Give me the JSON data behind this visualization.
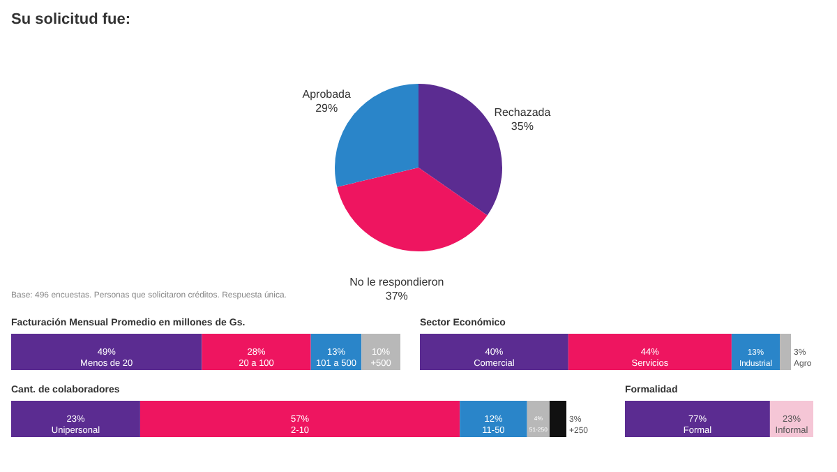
{
  "chart_data": [
    {
      "type": "pie",
      "title": "Su solicitud fue:",
      "categories": [
        "Rechazada",
        "No le respondieron",
        "Aprobada"
      ],
      "values": [
        35,
        37,
        29
      ],
      "value_labels": [
        "35%",
        "37%",
        "29%"
      ],
      "colors": [
        "#5b2c91",
        "#ee1560",
        "#2a85c9"
      ],
      "annotations": [
        "Base: 496 encuestas. Personas que solicitaron créditos. Respuesta única."
      ]
    },
    {
      "type": "bar",
      "orientation": "horizontal",
      "stacked": true,
      "title": "Facturación Mensual Promedio en millones de Gs.",
      "categories": [
        null
      ],
      "series": [
        {
          "name": "Menos de 20",
          "color": "#5b2c91",
          "values": [
            49
          ],
          "value_labels": [
            "49%"
          ]
        },
        {
          "name": "20 a 100",
          "color": "#ee1560",
          "values": [
            28
          ],
          "value_labels": [
            "28%"
          ]
        },
        {
          "name": "101 a 500",
          "color": "#2a85c9",
          "values": [
            13
          ],
          "value_labels": [
            "13%"
          ]
        },
        {
          "name": "+500",
          "color": "#b8b8b8",
          "values": [
            10
          ],
          "value_labels": [
            "10%"
          ]
        }
      ]
    },
    {
      "type": "bar",
      "orientation": "horizontal",
      "stacked": true,
      "title": "Sector Económico",
      "categories": [
        null
      ],
      "series": [
        {
          "name": "Comercial",
          "color": "#5b2c91",
          "values": [
            40
          ],
          "value_labels": [
            "40%"
          ]
        },
        {
          "name": "Servicios",
          "color": "#ee1560",
          "values": [
            44
          ],
          "value_labels": [
            "44%"
          ]
        },
        {
          "name": "Industrial",
          "color": "#2a85c9",
          "values": [
            13
          ],
          "value_labels": [
            "13%"
          ]
        },
        {
          "name": "Agro",
          "color": "#b8b8b8",
          "values": [
            3
          ],
          "value_labels": [
            "3%"
          ]
        }
      ]
    },
    {
      "type": "bar",
      "orientation": "horizontal",
      "stacked": true,
      "title": "Cant. de colaboradores",
      "categories": [
        null
      ],
      "series": [
        {
          "name": "Unipersonal",
          "color": "#5b2c91",
          "values": [
            23
          ],
          "value_labels": [
            "23%"
          ]
        },
        {
          "name": "2-10",
          "color": "#ee1560",
          "values": [
            57
          ],
          "value_labels": [
            "57%"
          ]
        },
        {
          "name": "11-50",
          "color": "#2a85c9",
          "values": [
            12
          ],
          "value_labels": [
            "12%"
          ]
        },
        {
          "name": "51-250",
          "color": "#b8b8b8",
          "values": [
            4
          ],
          "value_labels": [
            "4%"
          ]
        },
        {
          "name": "+250",
          "color": "#111111",
          "values": [
            3
          ],
          "value_labels": [
            "3%"
          ]
        }
      ]
    },
    {
      "type": "bar",
      "orientation": "horizontal",
      "stacked": true,
      "title": "Formalidad",
      "categories": [
        null
      ],
      "series": [
        {
          "name": "Formal",
          "color": "#5b2c91",
          "values": [
            77
          ],
          "value_labels": [
            "77%"
          ]
        },
        {
          "name": "Informal",
          "color": "#f5c6d6",
          "values": [
            23
          ],
          "value_labels": [
            "23%"
          ]
        }
      ]
    }
  ]
}
